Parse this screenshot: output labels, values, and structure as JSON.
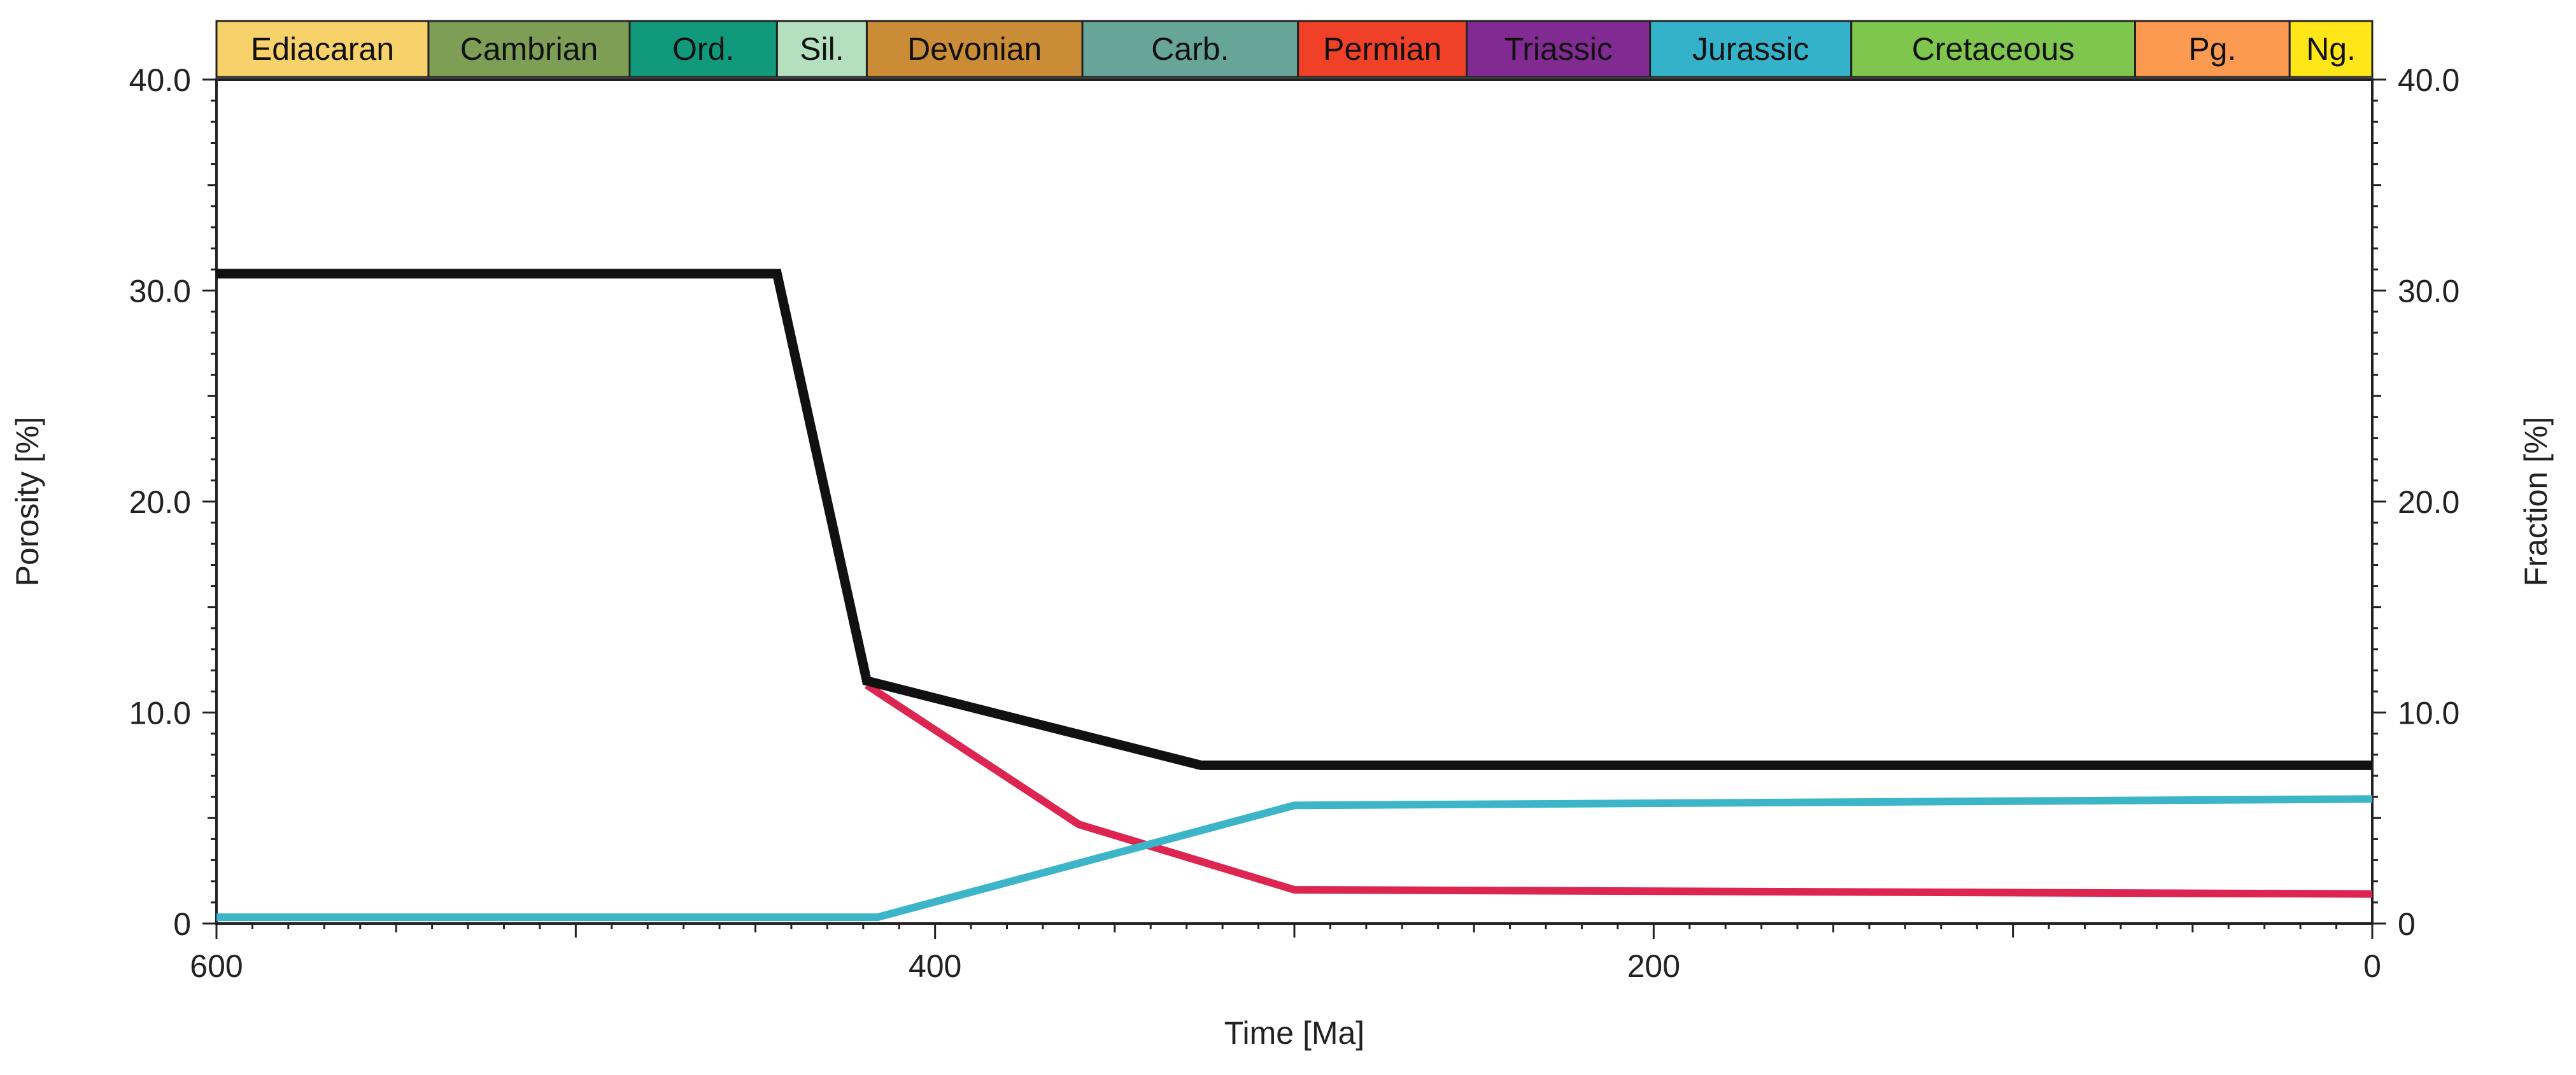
{
  "chart_data": {
    "type": "line",
    "title": "",
    "xlabel": "Time [Ma]",
    "ylabel": "Porosity [%]",
    "y2label": "Fraction [%]",
    "xlim": [
      600,
      0
    ],
    "ylim": [
      0,
      40
    ],
    "y2lim": [
      0,
      40
    ],
    "x_ticks": [
      600,
      400,
      200,
      0
    ],
    "y_ticks": [
      "0",
      "10.0",
      "20.0",
      "30.0",
      "40.0"
    ],
    "y_tick_values": [
      0,
      10,
      20,
      30,
      40
    ],
    "periods": [
      {
        "name": "Ediacaran",
        "start": 600,
        "end": 541,
        "color": "#F7D26B"
      },
      {
        "name": "Cambrian",
        "start": 541,
        "end": 485,
        "color": "#7E9E55"
      },
      {
        "name": "Ord.",
        "start": 485,
        "end": 444,
        "color": "#109A7B"
      },
      {
        "name": "Sil.",
        "start": 444,
        "end": 419,
        "color": "#B4E0C0"
      },
      {
        "name": "Devonian",
        "start": 419,
        "end": 359,
        "color": "#CB8C37"
      },
      {
        "name": "Carb.",
        "start": 359,
        "end": 299,
        "color": "#67A599"
      },
      {
        "name": "Permian",
        "start": 299,
        "end": 252,
        "color": "#F04028"
      },
      {
        "name": "Triassic",
        "start": 252,
        "end": 201,
        "color": "#812B92"
      },
      {
        "name": "Jurassic",
        "start": 201,
        "end": 145,
        "color": "#34B2C9"
      },
      {
        "name": "Cretaceous",
        "start": 145,
        "end": 66,
        "color": "#7FC64E"
      },
      {
        "name": "Pg.",
        "start": 66,
        "end": 23,
        "color": "#FD9A52"
      },
      {
        "name": "Ng.",
        "start": 23,
        "end": 0,
        "color": "#FFE619"
      }
    ],
    "series": [
      {
        "name": "Porosity",
        "color": "#111111",
        "x": [
          600,
          444,
          419,
          326,
          0
        ],
        "y": [
          30.8,
          30.8,
          11.5,
          7.5,
          7.5
        ]
      },
      {
        "name": "Fraction (red)",
        "color": "#DC2550",
        "x": [
          419,
          360,
          300,
          0
        ],
        "y": [
          11.3,
          4.7,
          1.6,
          1.4
        ]
      },
      {
        "name": "Fraction (cyan)",
        "color": "#3DB5C8",
        "x": [
          600,
          416,
          300,
          0
        ],
        "y": [
          0.3,
          0.3,
          5.6,
          5.9
        ]
      }
    ]
  }
}
